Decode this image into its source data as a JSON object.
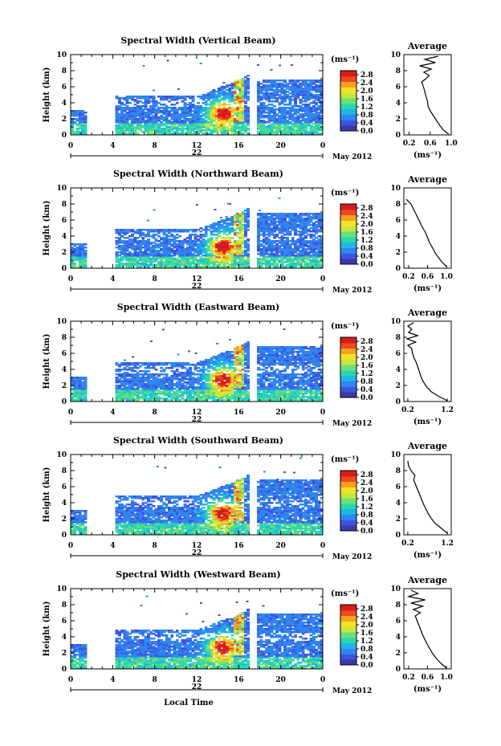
{
  "figure": {
    "x_axis_label": "Local Time",
    "date_label": "May 2012",
    "day_label": "22",
    "unit_label": "(ms⁻¹)",
    "average_title": "Average",
    "average_xlabel": "(ms⁻¹)",
    "y_axis_label": "Height (km)"
  },
  "colorbar": {
    "ticks": [
      "2.8",
      "2.4",
      "2.0",
      "1.6",
      "1.2",
      "0.8",
      "0.4",
      "0.0"
    ],
    "colors": [
      "#3a3aa8",
      "#3f52e0",
      "#2f86ee",
      "#1fb6e6",
      "#2ad6b0",
      "#6be078",
      "#c6e83a",
      "#f3e22a",
      "#f8a022",
      "#ee4a1c",
      "#d61c1c"
    ]
  },
  "chart_data": [
    {
      "type": "heatmap",
      "title": "Spectral Width (Vertical Beam)",
      "xlabel": "Local Time",
      "ylabel": "Height (km)",
      "x_ticks": [
        "0",
        "4",
        "8",
        "12",
        "16",
        "20",
        "0"
      ],
      "y_ticks": [
        "10",
        "8",
        "6",
        "4",
        "2",
        "0"
      ],
      "xlim": [
        0,
        24
      ],
      "ylim": [
        0,
        10
      ],
      "colorbar_range": [
        0.0,
        3.0
      ],
      "average_profile": {
        "title": "Average",
        "xlabel": "(ms⁻¹)",
        "x_ticks": [
          "0.2",
          "0.6",
          "1.0"
        ],
        "xlim": [
          0.1,
          1.0
        ],
        "height": [
          0.1,
          0.6,
          1.2,
          1.8,
          2.4,
          3.0,
          3.6,
          4.2,
          4.8,
          5.4,
          6.0,
          6.6,
          7.0,
          7.4,
          7.8,
          8.2,
          8.6,
          9.0,
          9.4,
          9.8
        ],
        "width": [
          0.95,
          0.85,
          0.78,
          0.72,
          0.66,
          0.6,
          0.56,
          0.55,
          0.52,
          0.5,
          0.47,
          0.44,
          0.52,
          0.58,
          0.48,
          0.62,
          0.4,
          0.7,
          0.5,
          0.75
        ]
      }
    },
    {
      "type": "heatmap",
      "title": "Spectral Width (Northward Beam)",
      "xlabel": "Local Time",
      "ylabel": "Height (km)",
      "x_ticks": [
        "0",
        "4",
        "8",
        "12",
        "16",
        "20",
        "0"
      ],
      "y_ticks": [
        "10",
        "8",
        "6",
        "4",
        "2",
        "0"
      ],
      "xlim": [
        0,
        24
      ],
      "ylim": [
        0,
        10
      ],
      "colorbar_range": [
        0.0,
        3.0
      ],
      "average_profile": {
        "title": "Average",
        "xlabel": "(ms⁻¹)",
        "x_ticks": [
          "0.2",
          "0.6",
          "1.0"
        ],
        "xlim": [
          0.1,
          1.1
        ],
        "height": [
          0.2,
          0.8,
          1.4,
          2.0,
          2.6,
          3.2,
          3.8,
          4.4,
          5.0,
          5.6,
          6.2,
          6.8,
          7.4,
          8.0,
          8.6
        ],
        "width": [
          1.0,
          0.9,
          0.82,
          0.75,
          0.7,
          0.64,
          0.6,
          0.56,
          0.5,
          0.45,
          0.4,
          0.35,
          0.3,
          0.25,
          0.15
        ]
      }
    },
    {
      "type": "heatmap",
      "title": "Spectral Width (Eastward Beam)",
      "xlabel": "Local Time",
      "ylabel": "Height (km)",
      "x_ticks": [
        "0",
        "4",
        "8",
        "12",
        "16",
        "20",
        "0"
      ],
      "y_ticks": [
        "10",
        "8",
        "6",
        "4",
        "2",
        "0"
      ],
      "xlim": [
        0,
        24
      ],
      "ylim": [
        0,
        10
      ],
      "colorbar_range": [
        0.0,
        3.0
      ],
      "average_profile": {
        "title": "Average",
        "xlabel": "(ms⁻¹)",
        "x_ticks": [
          "0.2",
          "1.2"
        ],
        "xlim": [
          0.1,
          1.3
        ],
        "height": [
          0.1,
          0.6,
          1.2,
          1.8,
          2.4,
          3.0,
          3.6,
          4.2,
          4.8,
          5.4,
          6.0,
          6.6,
          7.0,
          7.4,
          7.8,
          8.2,
          8.6,
          9.0,
          9.4,
          9.8
        ],
        "width": [
          1.2,
          1.0,
          0.8,
          0.68,
          0.6,
          0.54,
          0.5,
          0.46,
          0.42,
          0.36,
          0.32,
          0.3,
          0.2,
          0.4,
          0.18,
          0.45,
          0.22,
          0.3,
          0.2,
          0.35
        ]
      }
    },
    {
      "type": "heatmap",
      "title": "Spectral Width (Southward Beam)",
      "xlabel": "Local Time",
      "ylabel": "Height (km)",
      "x_ticks": [
        "0",
        "4",
        "8",
        "12",
        "16",
        "20",
        "0"
      ],
      "y_ticks": [
        "10",
        "8",
        "6",
        "4",
        "2",
        "0"
      ],
      "xlim": [
        0,
        24
      ],
      "ylim": [
        0,
        10
      ],
      "colorbar_range": [
        0.0,
        3.0
      ],
      "average_profile": {
        "title": "Average",
        "xlabel": "(ms⁻¹)",
        "x_ticks": [
          "0.2",
          "1.2"
        ],
        "xlim": [
          0.1,
          1.3
        ],
        "height": [
          0.2,
          0.8,
          1.4,
          2.0,
          2.6,
          3.2,
          3.8,
          4.4,
          5.0,
          5.6,
          6.2,
          6.8,
          7.4,
          8.0,
          8.6,
          9.2
        ],
        "width": [
          1.2,
          1.05,
          0.9,
          0.8,
          0.72,
          0.66,
          0.6,
          0.55,
          0.5,
          0.45,
          0.4,
          0.35,
          0.38,
          0.28,
          0.22,
          0.2
        ]
      }
    },
    {
      "type": "heatmap",
      "title": "Spectral Width (Westward Beam)",
      "xlabel": "Local Time",
      "ylabel": "Height (km)",
      "x_ticks": [
        "0",
        "4",
        "8",
        "12",
        "16",
        "20",
        "0"
      ],
      "y_ticks": [
        "10",
        "8",
        "6",
        "4",
        "2",
        "0"
      ],
      "xlim": [
        0,
        24
      ],
      "ylim": [
        0,
        10
      ],
      "colorbar_range": [
        0.0,
        3.0
      ],
      "average_profile": {
        "title": "Average",
        "xlabel": "(ms⁻¹)",
        "x_ticks": [
          "0.2",
          "0.6",
          "1.0"
        ],
        "xlim": [
          0.1,
          1.1
        ],
        "height": [
          0.1,
          0.6,
          1.2,
          1.8,
          2.4,
          3.0,
          3.6,
          4.2,
          4.8,
          5.4,
          6.0,
          6.6,
          7.0,
          7.4,
          7.8,
          8.2,
          8.6,
          9.0,
          9.4,
          9.8
        ],
        "width": [
          1.0,
          0.9,
          0.8,
          0.72,
          0.66,
          0.6,
          0.55,
          0.5,
          0.46,
          0.42,
          0.38,
          0.34,
          0.45,
          0.3,
          0.5,
          0.25,
          0.55,
          0.2,
          0.4,
          0.25
        ]
      }
    }
  ]
}
